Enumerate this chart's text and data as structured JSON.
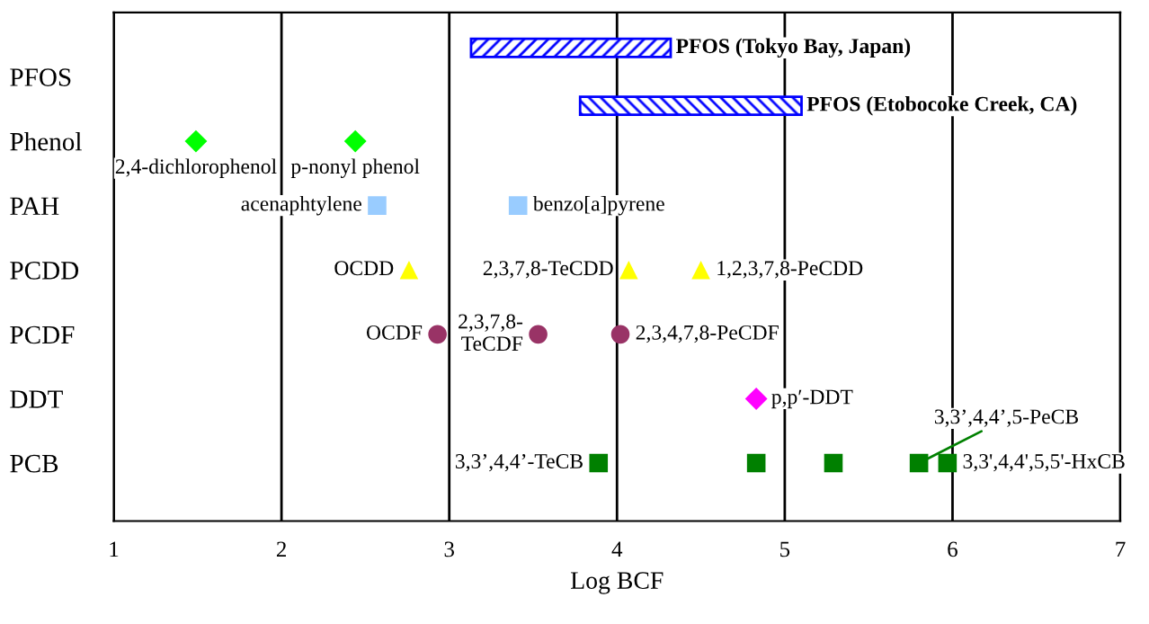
{
  "chart_data": {
    "type": "scatter",
    "orientation": "horizontal",
    "xlabel": "Log BCF",
    "xlim": [
      1,
      7
    ],
    "xticks": [
      1,
      2,
      3,
      4,
      5,
      6,
      7
    ],
    "grid": "x",
    "categories": [
      "PFOS",
      "Phenol",
      "PAH",
      "PCDD",
      "PCDF",
      "DDT",
      "PCB"
    ],
    "series": [
      {
        "type": "bar",
        "name": "PFOS (Tokyo Bay, Japan)",
        "color": "#0000ff",
        "base": [
          3.13,
          null,
          null,
          null,
          null,
          null,
          null
        ],
        "values": [
          1.19,
          null,
          null,
          null,
          null,
          null,
          null
        ]
      },
      {
        "type": "bar",
        "name": "PFOS (Etobocoke Creek, CA)",
        "color": "#0000ff",
        "base": [
          3.78,
          null,
          null,
          null,
          null,
          null,
          null
        ],
        "values": [
          1.32,
          null,
          null,
          null,
          null,
          null,
          null
        ]
      },
      {
        "name": "2,4-dichlorophenol",
        "marker": "diamond",
        "color": "#00ff00",
        "values": [
          null,
          1.49,
          null,
          null,
          null,
          null,
          null
        ]
      },
      {
        "name": "p-nonyl phenol",
        "marker": "diamond",
        "color": "#00ff00",
        "values": [
          null,
          2.44,
          null,
          null,
          null,
          null,
          null
        ]
      },
      {
        "name": "acenaphtylene",
        "marker": "square",
        "color": "#99ccff",
        "values": [
          null,
          null,
          2.57,
          null,
          null,
          null,
          null
        ]
      },
      {
        "name": "benzo[a]pyrene",
        "marker": "square",
        "color": "#99ccff",
        "values": [
          null,
          null,
          3.41,
          null,
          null,
          null,
          null
        ]
      },
      {
        "name": "OCDD",
        "marker": "triangle",
        "color": "#ffff00",
        "values": [
          null,
          null,
          null,
          2.76,
          null,
          null,
          null
        ]
      },
      {
        "name": "2,3,7,8-TeCDD",
        "marker": "triangle",
        "color": "#ffff00",
        "values": [
          null,
          null,
          null,
          4.07,
          null,
          null,
          null
        ]
      },
      {
        "name": "1,2,3,7,8-PeCDD",
        "marker": "triangle",
        "color": "#ffff00",
        "values": [
          null,
          null,
          null,
          4.5,
          null,
          null,
          null
        ]
      },
      {
        "name": "OCDF",
        "marker": "circle",
        "color": "#993366",
        "values": [
          null,
          null,
          null,
          null,
          2.93,
          null,
          null
        ]
      },
      {
        "name": "2,3,7,8-\nTeCDF",
        "marker": "circle",
        "color": "#993366",
        "values": [
          null,
          null,
          null,
          null,
          3.53,
          null,
          null
        ]
      },
      {
        "name": "2,3,4,7,8-PeCDF",
        "marker": "circle",
        "color": "#993366",
        "values": [
          null,
          null,
          null,
          null,
          4.02,
          null,
          null
        ]
      },
      {
        "name": "p,p′-DDT",
        "marker": "diamond",
        "color": "#ff00ff",
        "values": [
          null,
          null,
          null,
          null,
          null,
          4.83,
          null
        ]
      },
      {
        "name": "3,3’,4,4’-TeCB",
        "marker": "square",
        "color": "#008000",
        "values": [
          null,
          null,
          null,
          null,
          null,
          null,
          3.89
        ]
      },
      {
        "marker": "square",
        "color": "#008000",
        "values": [
          null,
          null,
          null,
          null,
          null,
          null,
          4.83
        ]
      },
      {
        "marker": "square",
        "color": "#008000",
        "values": [
          null,
          null,
          null,
          null,
          null,
          null,
          5.29
        ]
      },
      {
        "name": "3,3’,4,4’,5-PeCB",
        "marker": "square",
        "color": "#008000",
        "values": [
          null,
          null,
          null,
          null,
          null,
          null,
          5.8
        ]
      },
      {
        "name": "3,3',4,4',5,5'-HxCB",
        "marker": "square",
        "color": "#008000",
        "values": [
          null,
          null,
          null,
          null,
          null,
          null,
          5.97
        ]
      }
    ]
  }
}
